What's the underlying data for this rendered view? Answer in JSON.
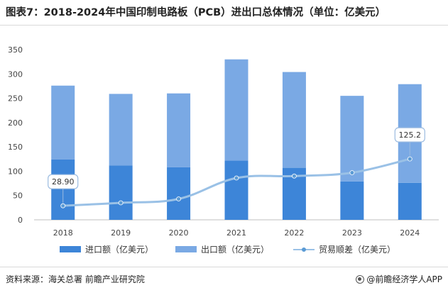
{
  "page": {
    "title": "图表7：2018-2024年中国印制电路板（PCB）进出口总体情况（单位：亿美元）",
    "source": "资料来源：海关总署 前瞻产业研究院",
    "brand": "@前瞻经济学人APP"
  },
  "chart_data": {
    "type": "bar",
    "stacked": true,
    "title": "图表7：2018-2024年中国印制电路板（PCB）进出口总体情况（单位：亿美元）",
    "categories": [
      "2018",
      "2019",
      "2020",
      "2021",
      "2022",
      "2023",
      "2024"
    ],
    "ylim": [
      0,
      350
    ],
    "yticks": [
      0,
      50,
      100,
      150,
      200,
      250,
      300,
      350
    ],
    "series": [
      {
        "name": "进口额（亿美元）",
        "kind": "bar",
        "color": "#3d85d8",
        "values": [
          124,
          112,
          108,
          122,
          107,
          79,
          76
        ]
      },
      {
        "name": "出口额（亿美元）",
        "kind": "bar",
        "color": "#7aa9e4",
        "values": [
          152,
          147,
          152,
          208,
          197,
          176,
          203
        ]
      },
      {
        "name": "贸易顺差（亿美元）",
        "kind": "line",
        "color": "#9ac1e6",
        "marker_color": "#5b9bd5",
        "values": [
          28.9,
          35,
          43,
          86,
          90,
          97,
          125.2
        ]
      }
    ],
    "annotations": [
      {
        "series": "贸易顺差（亿美元）",
        "category": "2018",
        "text": "28.90"
      },
      {
        "series": "贸易顺差（亿美元）",
        "category": "2024",
        "text": "125.2"
      }
    ],
    "grid": false,
    "legend": "bottom"
  }
}
